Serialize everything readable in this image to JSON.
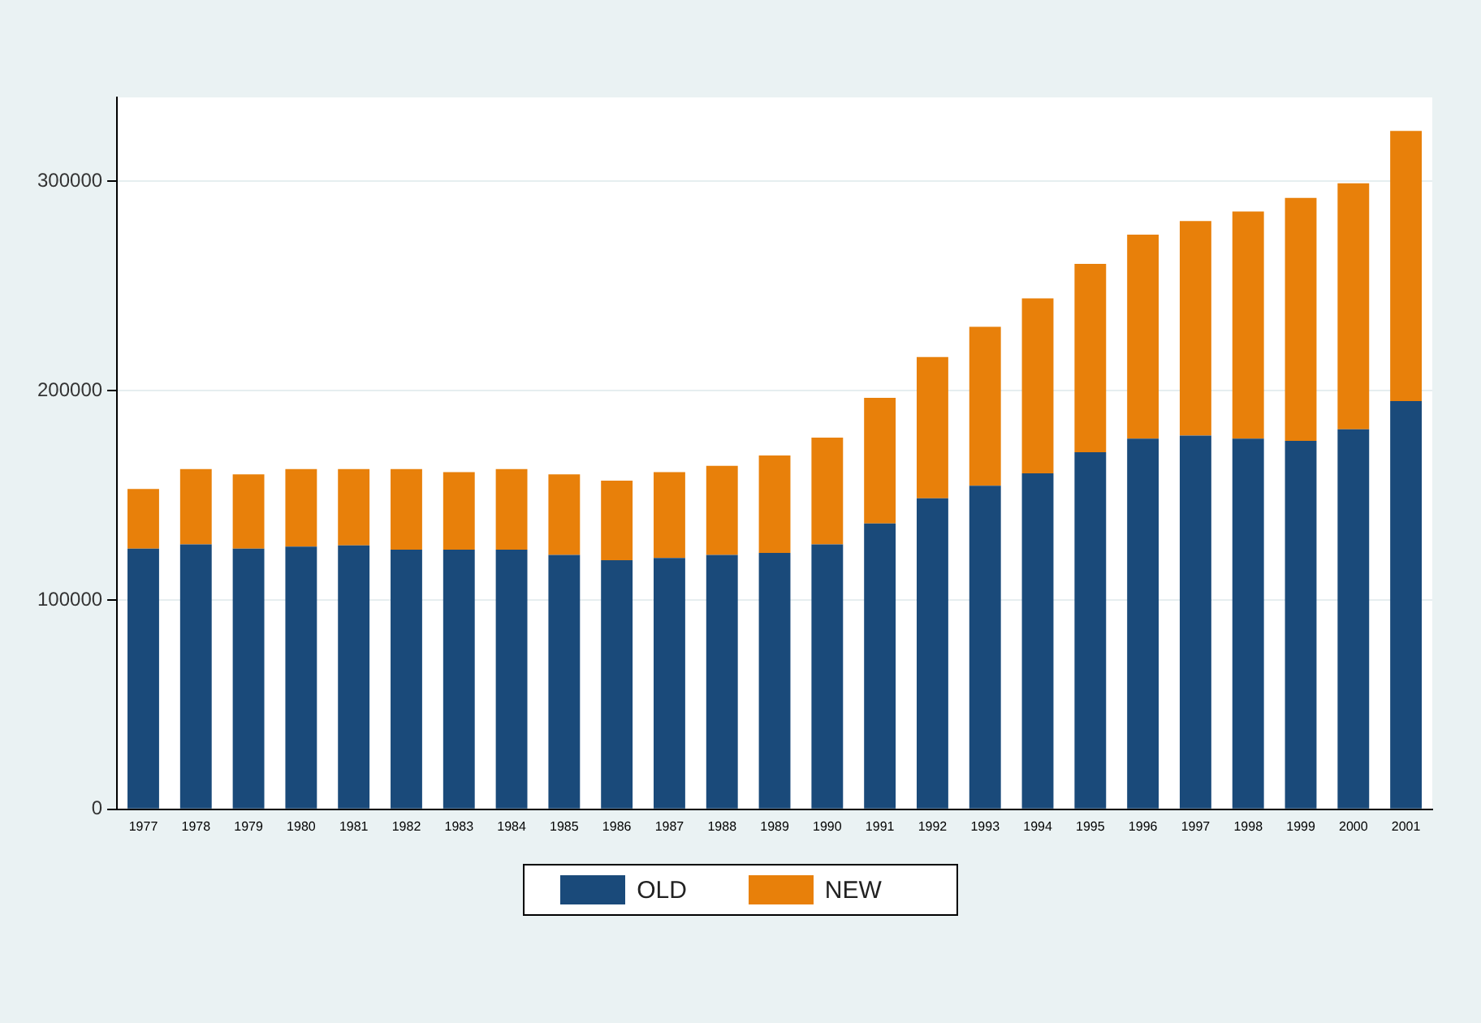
{
  "chart_data": {
    "type": "bar",
    "stacked": true,
    "categories": [
      "1977",
      "1978",
      "1979",
      "1980",
      "1981",
      "1982",
      "1983",
      "1984",
      "1985",
      "1986",
      "1987",
      "1988",
      "1989",
      "1990",
      "1991",
      "1992",
      "1993",
      "1994",
      "1995",
      "1996",
      "1997",
      "1998",
      "1999",
      "2000",
      "2001"
    ],
    "series": [
      {
        "name": "OLD",
        "color": "#1a4a7a",
        "values": [
          124500,
          126500,
          124500,
          125500,
          126000,
          124000,
          124000,
          124000,
          121500,
          119000,
          120000,
          121500,
          122500,
          126500,
          136500,
          148500,
          154500,
          160500,
          170500,
          177000,
          178500,
          177000,
          176000,
          181500,
          195000
        ]
      },
      {
        "name": "NEW",
        "color": "#e8800a",
        "values": [
          28500,
          36000,
          35500,
          37000,
          36500,
          38500,
          37000,
          38500,
          38500,
          38000,
          41000,
          42500,
          46500,
          51000,
          60000,
          67500,
          76000,
          83500,
          90000,
          97500,
          102500,
          108500,
          116000,
          117500,
          129000
        ]
      }
    ],
    "ylim": [
      0,
      340000
    ],
    "yticks": [
      0,
      100000,
      200000,
      300000
    ],
    "grid": "y",
    "legend": "bottom"
  }
}
